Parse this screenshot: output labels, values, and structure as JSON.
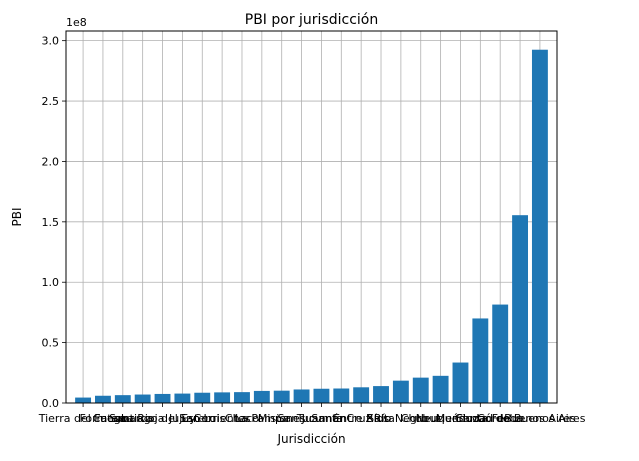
{
  "chart_data": {
    "type": "bar",
    "title": "PBI por jurisdicción",
    "xlabel": "Jurisdicción",
    "ylabel": "PBI",
    "y_offset_text": "1e8",
    "ylim": [
      0,
      3.08
    ],
    "yticks": [
      "0.0",
      "0.5",
      "1.0",
      "1.5",
      "2.0",
      "2.5",
      "3.0"
    ],
    "grid": true,
    "bar_color": "#1f77b4",
    "grid_color": "#b0b0b0",
    "categories": [
      "Tierra del Fuego",
      "Formosa",
      "Catamarca",
      "La Rioja",
      "Santiago del Estero",
      "Jujuy",
      "San Luis",
      "Corrientes",
      "Chaco",
      "La Pampa",
      "Misiones",
      "San Juan",
      "Tucumán",
      "Santa Cruz",
      "Entre Ríos",
      "Salta",
      "Río Negro",
      "Chubut",
      "Neuquén",
      "Mendoza",
      "Santa Fe",
      "Córdoba",
      "Ciudad de Buenos Aires",
      "Buenos Aires"
    ],
    "values": [
      0.045,
      0.06,
      0.065,
      0.07,
      0.075,
      0.078,
      0.085,
      0.088,
      0.09,
      0.1,
      0.102,
      0.112,
      0.118,
      0.12,
      0.13,
      0.14,
      0.185,
      0.21,
      0.225,
      0.335,
      0.7,
      0.815,
      1.555,
      2.925
    ]
  }
}
